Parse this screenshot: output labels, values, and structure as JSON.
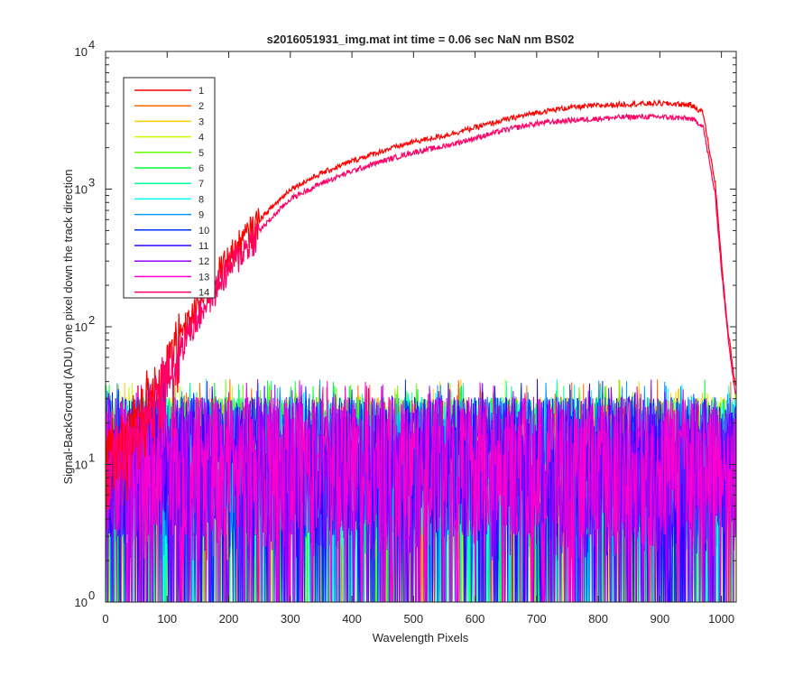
{
  "chart_data": {
    "type": "line",
    "title": "s2016051931_img.mat int time = 0.06 sec  NaN nm BS02",
    "xlabel": "Wavelength Pixels",
    "ylabel": "Signal-BackGround (ADU) one pixel down the track direction",
    "xlim": [
      0,
      1024
    ],
    "ylim": [
      1,
      10000
    ],
    "yscale": "log",
    "grid": false,
    "legend_position": "top-left",
    "x_ticks": [
      0,
      100,
      200,
      300,
      400,
      500,
      600,
      700,
      800,
      900,
      1000
    ],
    "y_ticks": [
      {
        "value": 1,
        "base": "10",
        "exp": "0"
      },
      {
        "value": 10,
        "base": "10",
        "exp": "1"
      },
      {
        "value": 100,
        "base": "10",
        "exp": "2"
      },
      {
        "value": 1000,
        "base": "10",
        "exp": "3"
      },
      {
        "value": 10000,
        "base": "10",
        "exp": "4"
      }
    ],
    "series": [
      {
        "name": "1",
        "color": "#ff0000",
        "kind": "signal",
        "peak": 4200,
        "profile": [
          [
            0,
            12
          ],
          [
            30,
            15
          ],
          [
            60,
            25
          ],
          [
            100,
            55
          ],
          [
            130,
            100
          ],
          [
            170,
            200
          ],
          [
            200,
            320
          ],
          [
            250,
            600
          ],
          [
            300,
            1000
          ],
          [
            350,
            1300
          ],
          [
            400,
            1600
          ],
          [
            450,
            1900
          ],
          [
            500,
            2200
          ],
          [
            550,
            2450
          ],
          [
            600,
            2800
          ],
          [
            650,
            3200
          ],
          [
            700,
            3600
          ],
          [
            750,
            3900
          ],
          [
            800,
            4050
          ],
          [
            850,
            4150
          ],
          [
            900,
            4200
          ],
          [
            950,
            4100
          ],
          [
            970,
            3600
          ],
          [
            990,
            1100
          ],
          [
            1000,
            300
          ],
          [
            1010,
            100
          ],
          [
            1020,
            45
          ],
          [
            1024,
            35
          ]
        ]
      },
      {
        "name": "2",
        "color": "#ff6600",
        "kind": "noise"
      },
      {
        "name": "3",
        "color": "#ffcc00",
        "kind": "noise"
      },
      {
        "name": "4",
        "color": "#ccff00",
        "kind": "noise"
      },
      {
        "name": "5",
        "color": "#66ff00",
        "kind": "noise"
      },
      {
        "name": "6",
        "color": "#00ff33",
        "kind": "noise"
      },
      {
        "name": "7",
        "color": "#00ff99",
        "kind": "noise"
      },
      {
        "name": "8",
        "color": "#00ffff",
        "kind": "noise"
      },
      {
        "name": "9",
        "color": "#0099ff",
        "kind": "noise"
      },
      {
        "name": "10",
        "color": "#0033ff",
        "kind": "noise"
      },
      {
        "name": "11",
        "color": "#3300ff",
        "kind": "noise"
      },
      {
        "name": "12",
        "color": "#9900ff",
        "kind": "noise"
      },
      {
        "name": "13",
        "color": "#ff00cc",
        "kind": "noise"
      },
      {
        "name": "14",
        "color": "#ff0066",
        "kind": "signal",
        "peak": 3400,
        "profile": [
          [
            0,
            10
          ],
          [
            30,
            12
          ],
          [
            60,
            20
          ],
          [
            100,
            45
          ],
          [
            130,
            85
          ],
          [
            170,
            170
          ],
          [
            200,
            270
          ],
          [
            250,
            500
          ],
          [
            300,
            850
          ],
          [
            350,
            1100
          ],
          [
            400,
            1350
          ],
          [
            450,
            1600
          ],
          [
            500,
            1850
          ],
          [
            550,
            2050
          ],
          [
            600,
            2350
          ],
          [
            650,
            2700
          ],
          [
            700,
            3000
          ],
          [
            750,
            3150
          ],
          [
            800,
            3250
          ],
          [
            850,
            3350
          ],
          [
            900,
            3350
          ],
          [
            950,
            3250
          ],
          [
            970,
            2900
          ],
          [
            990,
            900
          ],
          [
            1000,
            260
          ],
          [
            1010,
            90
          ],
          [
            1020,
            40
          ],
          [
            1024,
            30
          ]
        ]
      }
    ]
  }
}
